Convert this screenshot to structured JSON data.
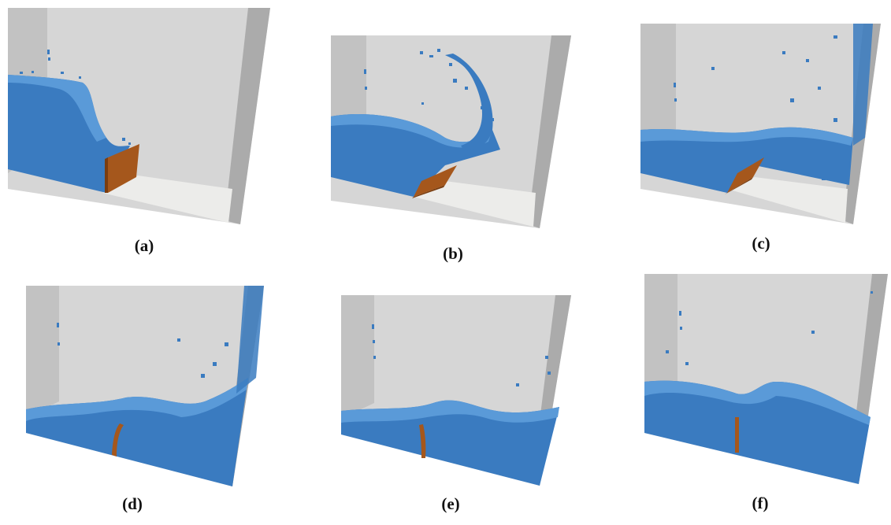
{
  "figure": {
    "panels": [
      {
        "id": "a",
        "caption": "(a)"
      },
      {
        "id": "b",
        "caption": "(b)"
      },
      {
        "id": "c",
        "caption": "(c)"
      },
      {
        "id": "d",
        "caption": "(d)"
      },
      {
        "id": "e",
        "caption": "(e)"
      },
      {
        "id": "f",
        "caption": "(f)"
      }
    ]
  },
  "colors": {
    "water": "#3a7bc0",
    "water_light": "#5a9ad8",
    "water_dark": "#2f68a8",
    "tank_back": "#d6d6d6",
    "tank_side_left": "#bdbdbd",
    "tank_side_right": "#a9a9a9",
    "tank_floor": "#ececea",
    "gate": "#a5571c",
    "gate_dark": "#7a3d10"
  }
}
